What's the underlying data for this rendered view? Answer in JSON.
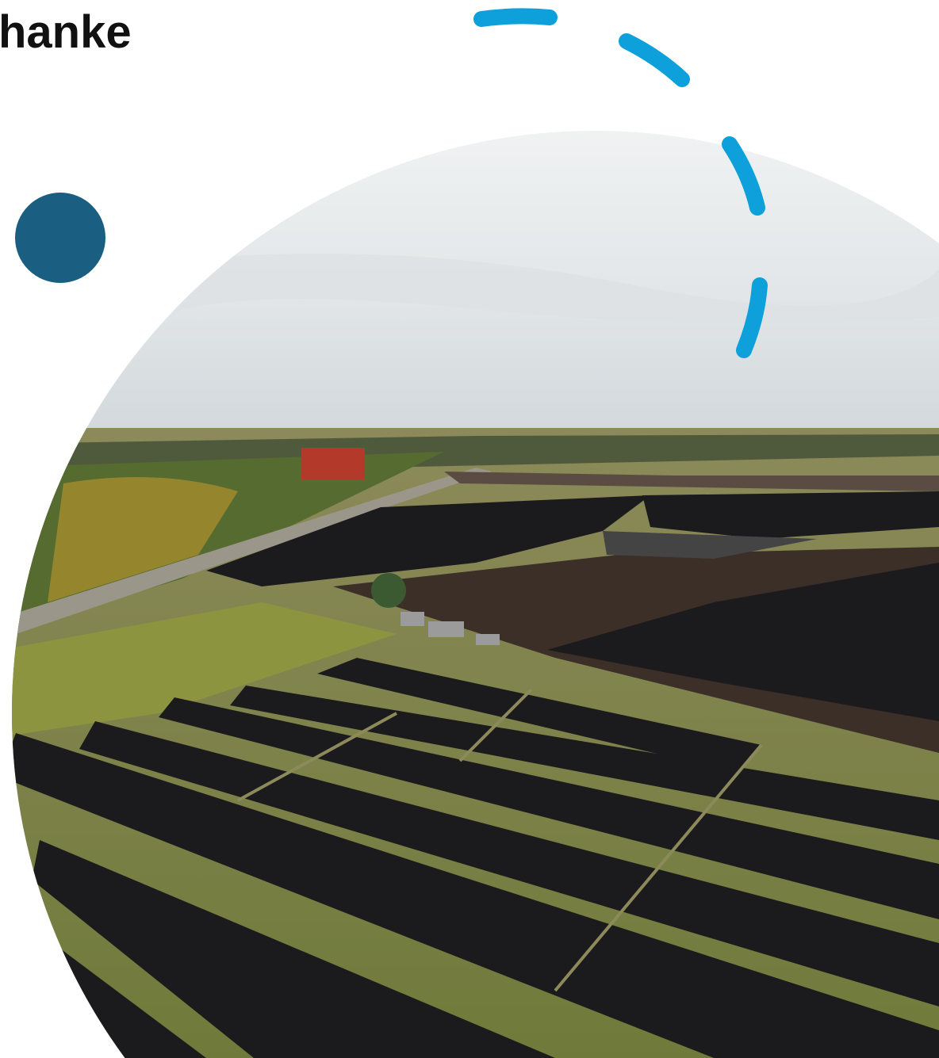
{
  "header": {
    "title": "hanke"
  }
}
